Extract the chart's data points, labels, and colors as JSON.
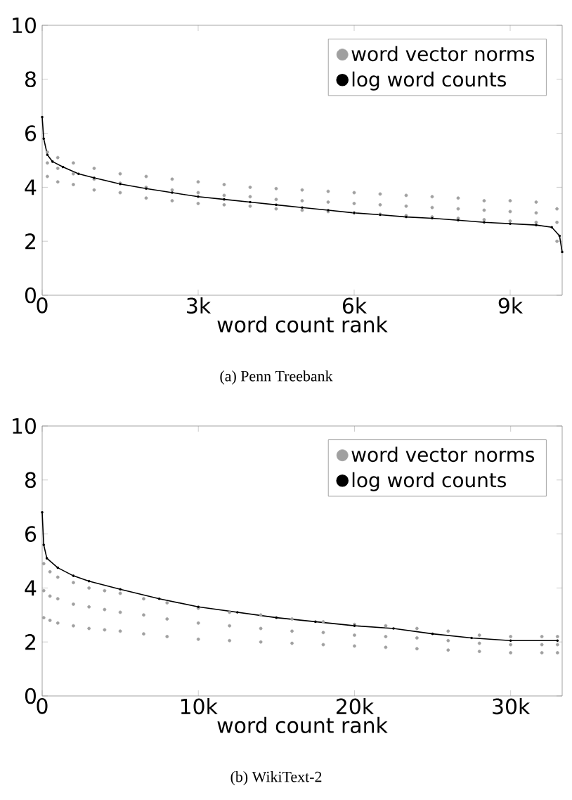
{
  "chart_data": [
    {
      "type": "scatter",
      "xlabel": "word count rank",
      "annotations": [
        "(a) Penn Treebank"
      ],
      "xlim": [
        0,
        10000
      ],
      "ylim": [
        0,
        10
      ],
      "xticks": [
        0,
        {
          "value": 3000,
          "label": "3k"
        },
        {
          "value": 6000,
          "label": "6k"
        },
        {
          "value": 9000,
          "label": "9k"
        }
      ],
      "yticks": [
        0,
        2,
        4,
        6,
        8,
        10
      ],
      "legend": "top right",
      "marker": "circle",
      "grid": false,
      "series": [
        {
          "name": "word vector norms",
          "color": "#a0a0a0",
          "x": [
            100,
            100,
            100,
            300,
            300,
            300,
            600,
            600,
            600,
            1000,
            1000,
            1000,
            1500,
            1500,
            1500,
            2000,
            2000,
            2000,
            2500,
            2500,
            2500,
            3000,
            3000,
            3000,
            3500,
            3500,
            3500,
            4000,
            4000,
            4000,
            4500,
            4500,
            4500,
            5000,
            5000,
            5000,
            5500,
            5500,
            5500,
            6000,
            6000,
            6000,
            6500,
            6500,
            6500,
            7000,
            7000,
            7000,
            7500,
            7500,
            7500,
            8000,
            8000,
            8000,
            8500,
            8500,
            8500,
            9000,
            9000,
            9000,
            9500,
            9500,
            9500,
            9900,
            9900,
            9900
          ],
          "values": [
            4.4,
            4.9,
            5.3,
            4.2,
            4.7,
            5.1,
            4.1,
            4.5,
            4.9,
            3.9,
            4.3,
            4.7,
            3.8,
            4.15,
            4.5,
            3.6,
            4.0,
            4.4,
            3.5,
            3.9,
            4.3,
            3.4,
            3.8,
            4.2,
            3.35,
            3.7,
            4.1,
            3.3,
            3.65,
            4.0,
            3.2,
            3.55,
            3.95,
            3.15,
            3.5,
            3.9,
            3.1,
            3.45,
            3.85,
            3.05,
            3.4,
            3.8,
            3.0,
            3.35,
            3.75,
            2.95,
            3.3,
            3.7,
            2.9,
            3.25,
            3.65,
            2.85,
            3.2,
            3.6,
            2.8,
            3.15,
            3.5,
            2.75,
            3.1,
            3.5,
            2.7,
            3.05,
            3.45,
            2.0,
            2.7,
            3.2
          ]
        },
        {
          "name": "log word counts",
          "type": "line",
          "color": "#000000",
          "x": [
            0,
            30,
            100,
            200,
            400,
            700,
            1000,
            1500,
            2000,
            2500,
            3000,
            3500,
            4000,
            4500,
            5000,
            5500,
            6000,
            6500,
            7000,
            7500,
            8000,
            8500,
            9000,
            9500,
            9800,
            9950,
            10000
          ],
          "values": [
            6.6,
            5.8,
            5.2,
            4.95,
            4.75,
            4.5,
            4.35,
            4.12,
            3.95,
            3.8,
            3.65,
            3.55,
            3.45,
            3.35,
            3.25,
            3.15,
            3.05,
            2.98,
            2.9,
            2.85,
            2.78,
            2.7,
            2.65,
            2.6,
            2.52,
            2.2,
            1.6
          ]
        }
      ]
    },
    {
      "type": "scatter",
      "xlabel": "word count rank",
      "annotations": [
        "(b) WikiText-2"
      ],
      "xlim": [
        0,
        33300
      ],
      "ylim": [
        0,
        10
      ],
      "xticks": [
        0,
        {
          "value": 10000,
          "label": "10k"
        },
        {
          "value": 20000,
          "label": "20k"
        },
        {
          "value": 30000,
          "label": "30k"
        }
      ],
      "yticks": [
        0,
        2,
        4,
        6,
        8,
        10
      ],
      "legend": "top right",
      "marker": "circle",
      "grid": false,
      "series": [
        {
          "name": "word vector norms",
          "color": "#a0a0a0",
          "x": [
            100,
            100,
            100,
            500,
            500,
            500,
            1000,
            1000,
            1000,
            2000,
            2000,
            2000,
            3000,
            3000,
            3000,
            4000,
            4000,
            4000,
            5000,
            5000,
            5000,
            6500,
            6500,
            6500,
            8000,
            8000,
            8000,
            10000,
            10000,
            10000,
            12000,
            12000,
            12000,
            14000,
            14000,
            14000,
            16000,
            16000,
            16000,
            18000,
            18000,
            18000,
            20000,
            20000,
            20000,
            22000,
            22000,
            22000,
            24000,
            24000,
            24000,
            26000,
            26000,
            26000,
            28000,
            28000,
            28000,
            30000,
            30000,
            30000,
            32000,
            32000,
            32000,
            33000,
            33000,
            33000
          ],
          "values": [
            2.9,
            3.9,
            4.9,
            2.8,
            3.7,
            4.6,
            2.7,
            3.6,
            4.4,
            2.6,
            3.4,
            4.2,
            2.5,
            3.3,
            4.0,
            2.45,
            3.2,
            3.9,
            2.4,
            3.1,
            3.8,
            2.3,
            3.0,
            3.6,
            2.2,
            2.85,
            3.45,
            2.1,
            2.7,
            3.25,
            2.05,
            2.6,
            3.1,
            2.0,
            2.5,
            3.0,
            1.95,
            2.4,
            2.85,
            1.9,
            2.35,
            2.75,
            1.85,
            2.25,
            2.65,
            1.8,
            2.2,
            2.6,
            1.75,
            2.15,
            2.5,
            1.7,
            2.05,
            2.4,
            1.65,
            1.95,
            2.25,
            1.6,
            1.9,
            2.2,
            1.6,
            1.9,
            2.2,
            1.6,
            1.9,
            2.2
          ]
        },
        {
          "name": "log word counts",
          "type": "line",
          "color": "#000000",
          "x": [
            0,
            100,
            300,
            1000,
            2000,
            3000,
            5000,
            7500,
            10000,
            12500,
            15000,
            17500,
            20000,
            22500,
            25000,
            27500,
            30000,
            33000
          ],
          "values": [
            6.8,
            5.6,
            5.1,
            4.75,
            4.45,
            4.25,
            3.95,
            3.6,
            3.3,
            3.1,
            2.9,
            2.75,
            2.6,
            2.5,
            2.3,
            2.15,
            2.05,
            2.05
          ]
        }
      ]
    }
  ]
}
